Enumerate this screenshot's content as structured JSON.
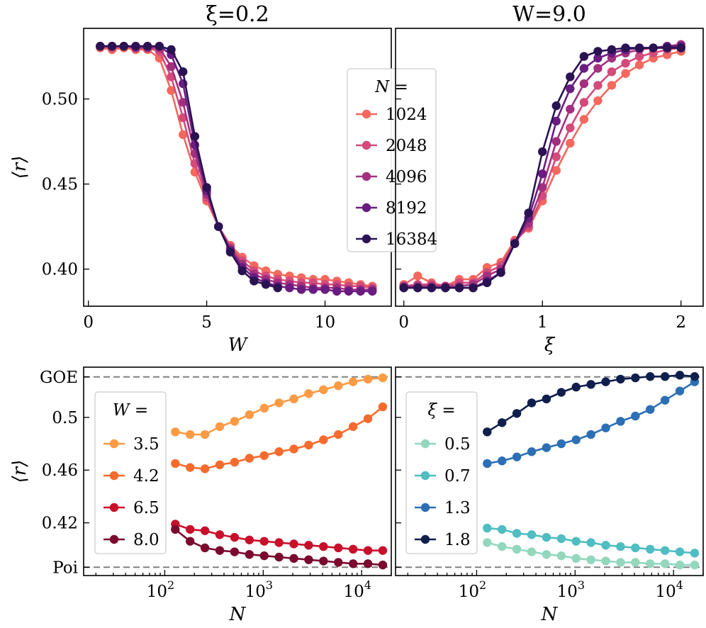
{
  "chart_data": [
    {
      "id": "top-left",
      "type": "line",
      "title": "ξ=0.2",
      "xlabel": "W",
      "ylabel": "⟨r⟩",
      "xlim": [
        -0.2,
        12.8
      ],
      "ylim": [
        0.3782,
        0.5415
      ],
      "xticks": [
        0,
        5,
        10
      ],
      "xtick_labels": [
        "0",
        "5",
        "10"
      ],
      "yticks": [
        0.4,
        0.45,
        0.5
      ],
      "ytick_labels": [
        "0.40",
        "0.45",
        "0.50"
      ],
      "legend": {
        "title": "N =",
        "placement": "right-center"
      },
      "series": [
        {
          "name": "1024",
          "color": "#f4685e",
          "x": [
            0.5,
            1,
            1.5,
            2,
            2.5,
            3,
            3.5,
            4,
            4.5,
            5,
            5.5,
            6,
            6.5,
            7,
            7.5,
            8,
            8.5,
            9,
            9.5,
            10,
            10.5,
            11,
            11.5,
            12
          ],
          "y": [
            0.53,
            0.529,
            0.53,
            0.529,
            0.529,
            0.524,
            0.505,
            0.479,
            0.457,
            0.44,
            0.425,
            0.414,
            0.407,
            0.402,
            0.399,
            0.397,
            0.396,
            0.395,
            0.394,
            0.394,
            0.393,
            0.392,
            0.391,
            0.39
          ]
        },
        {
          "name": "2048",
          "color": "#d44a7a",
          "x": [
            0.5,
            1,
            1.5,
            2,
            2.5,
            3,
            3.5,
            4,
            4.5,
            5,
            5.5,
            6,
            6.5,
            7,
            7.5,
            8,
            8.5,
            9,
            9.5,
            10,
            10.5,
            11,
            11.5,
            12
          ],
          "y": [
            0.531,
            0.53,
            0.531,
            0.53,
            0.53,
            0.528,
            0.513,
            0.489,
            0.462,
            0.442,
            0.425,
            0.413,
            0.405,
            0.399,
            0.396,
            0.394,
            0.393,
            0.392,
            0.392,
            0.391,
            0.391,
            0.39,
            0.39,
            0.389
          ]
        },
        {
          "name": "4096",
          "color": "#a3307e",
          "x": [
            0.5,
            1,
            1.5,
            2,
            2.5,
            3,
            3.5,
            4,
            4.5,
            5,
            5.5,
            6,
            6.5,
            7,
            7.5,
            8,
            8.5,
            9,
            9.5,
            10,
            10.5,
            11,
            11.5,
            12
          ],
          "y": [
            0.531,
            0.531,
            0.531,
            0.53,
            0.53,
            0.53,
            0.519,
            0.498,
            0.468,
            0.444,
            0.425,
            0.412,
            0.403,
            0.397,
            0.394,
            0.392,
            0.391,
            0.39,
            0.389,
            0.389,
            0.389,
            0.388,
            0.388,
            0.388
          ]
        },
        {
          "name": "8192",
          "color": "#6a1c81",
          "x": [
            0.5,
            1,
            1.5,
            2,
            2.5,
            3,
            3.5,
            4,
            4.5,
            5,
            5.5,
            6,
            6.5,
            7,
            7.5,
            8,
            8.5,
            9,
            9.5,
            10,
            10.5,
            11,
            11.5,
            12
          ],
          "y": [
            0.531,
            0.531,
            0.531,
            0.531,
            0.531,
            0.531,
            0.526,
            0.509,
            0.473,
            0.446,
            0.425,
            0.411,
            0.401,
            0.395,
            0.392,
            0.39,
            0.389,
            0.388,
            0.388,
            0.388,
            0.387,
            0.387,
            0.387,
            0.387
          ]
        },
        {
          "name": "16384",
          "color": "#2a1352",
          "x": [
            0.5,
            1,
            1.5,
            2,
            2.5,
            3,
            3.5,
            4,
            4.5,
            5,
            5.5,
            6,
            6.5,
            7,
            7.5,
            8
          ],
          "y": [
            0.531,
            0.531,
            0.531,
            0.531,
            0.531,
            0.531,
            0.529,
            0.516,
            0.478,
            0.448,
            0.425,
            0.41,
            0.399,
            0.393,
            0.391,
            0.389
          ]
        }
      ]
    },
    {
      "id": "top-right",
      "type": "line",
      "title": "W=9.0",
      "xlabel": "ξ",
      "ylabel": "",
      "xlim": [
        -0.06,
        2.16
      ],
      "ylim": [
        0.3782,
        0.5415
      ],
      "xticks": [
        0,
        1,
        2
      ],
      "xtick_labels": [
        "0",
        "1",
        "2"
      ],
      "yticks": [
        0.4,
        0.45,
        0.5
      ],
      "ytick_labels": [
        "",
        "",
        ""
      ],
      "series": [
        {
          "name": "1024",
          "color": "#f4685e",
          "x": [
            0,
            0.1,
            0.2,
            0.3,
            0.4,
            0.5,
            0.6,
            0.7,
            0.8,
            0.9,
            1.0,
            1.1,
            1.2,
            1.3,
            1.4,
            1.5,
            1.6,
            1.7,
            1.8,
            1.9,
            2.0
          ],
          "y": [
            0.391,
            0.396,
            0.392,
            0.39,
            0.394,
            0.394,
            0.401,
            0.404,
            0.417,
            0.424,
            0.44,
            0.458,
            0.474,
            0.488,
            0.499,
            0.508,
            0.515,
            0.52,
            0.524,
            0.526,
            0.528
          ]
        },
        {
          "name": "2048",
          "color": "#d44a7a",
          "x": [
            0,
            0.1,
            0.2,
            0.3,
            0.4,
            0.5,
            0.6,
            0.7,
            0.8,
            0.9,
            1.0,
            1.1,
            1.2,
            1.3,
            1.4,
            1.5,
            1.6,
            1.7,
            1.8,
            1.9,
            2.0
          ],
          "y": [
            0.39,
            0.391,
            0.391,
            0.39,
            0.392,
            0.392,
            0.398,
            0.402,
            0.416,
            0.425,
            0.443,
            0.466,
            0.483,
            0.498,
            0.508,
            0.516,
            0.521,
            0.525,
            0.527,
            0.529,
            0.53
          ]
        },
        {
          "name": "4096",
          "color": "#a3307e",
          "x": [
            0,
            0.1,
            0.2,
            0.3,
            0.4,
            0.5,
            0.6,
            0.7,
            0.8,
            0.9,
            1.0,
            1.1,
            1.2,
            1.3,
            1.4,
            1.5,
            1.6,
            1.7,
            1.8,
            1.9,
            2.0
          ],
          "y": [
            0.39,
            0.39,
            0.39,
            0.39,
            0.39,
            0.391,
            0.396,
            0.4,
            0.415,
            0.427,
            0.448,
            0.475,
            0.494,
            0.509,
            0.518,
            0.524,
            0.527,
            0.529,
            0.53,
            0.531,
            0.532
          ]
        },
        {
          "name": "8192",
          "color": "#6a1c81",
          "x": [
            0,
            0.1,
            0.2,
            0.3,
            0.4,
            0.5,
            0.6,
            0.7,
            0.8,
            0.9,
            1.0,
            1.1,
            1.2,
            1.3,
            1.4,
            1.5,
            1.6,
            1.7,
            1.8,
            1.9,
            2.0
          ],
          "y": [
            0.389,
            0.389,
            0.389,
            0.389,
            0.389,
            0.389,
            0.393,
            0.398,
            0.415,
            0.43,
            0.456,
            0.487,
            0.506,
            0.518,
            0.524,
            0.527,
            0.529,
            0.53,
            0.53,
            0.531,
            0.531
          ]
        },
        {
          "name": "16384",
          "color": "#2a1352",
          "x": [
            0,
            0.1,
            0.2,
            0.3,
            0.4,
            0.5,
            0.6,
            0.7,
            0.8,
            0.9,
            1.0,
            1.1,
            1.2,
            1.3,
            1.4,
            1.5,
            1.6,
            1.7,
            1.8,
            1.9,
            2.0
          ],
          "y": [
            0.389,
            0.389,
            0.389,
            0.389,
            0.389,
            0.389,
            0.392,
            0.398,
            0.415,
            0.433,
            0.469,
            0.496,
            0.513,
            0.525,
            0.528,
            0.529,
            0.53,
            0.53,
            0.53,
            0.53,
            0.53
          ]
        }
      ]
    },
    {
      "id": "bottom-left",
      "type": "line",
      "title": "",
      "xlabel": "N",
      "ylabel": "⟨r⟩",
      "xscale": "log",
      "xlim": [
        15,
        20000
      ],
      "ylim": [
        0.38,
        0.5381
      ],
      "xticks": [
        100,
        1000,
        10000
      ],
      "xtick_labels": [
        "10",
        "10",
        "10"
      ],
      "xtick_exponents": [
        "2",
        "3",
        "4"
      ],
      "yticks": [
        0.3863,
        0.42,
        0.46,
        0.5,
        0.5307
      ],
      "ytick_labels": [
        "Poi",
        "0.42",
        "0.46",
        "0.5",
        "GOE"
      ],
      "reference_lines": [
        {
          "name": "GOE",
          "y": 0.5307
        },
        {
          "name": "Poi",
          "y": 0.3863
        }
      ],
      "legend": {
        "title": "W =",
        "placement": "left-center"
      },
      "series": [
        {
          "name": "3.5",
          "color": "#fd9a44",
          "x": [
            128,
            181,
            256,
            362,
            512,
            724,
            1024,
            1448,
            2048,
            2896,
            4096,
            5793,
            8192,
            11585,
            16384
          ],
          "y": [
            0.489,
            0.487,
            0.487,
            0.493,
            0.497,
            0.502,
            0.507,
            0.511,
            0.514,
            0.518,
            0.521,
            0.524,
            0.527,
            0.529,
            0.53
          ]
        },
        {
          "name": "4.2",
          "color": "#f56b2e",
          "x": [
            128,
            181,
            256,
            362,
            512,
            724,
            1024,
            1448,
            2048,
            2896,
            4096,
            5793,
            8192,
            11585,
            16384
          ],
          "y": [
            0.465,
            0.462,
            0.461,
            0.464,
            0.466,
            0.469,
            0.471,
            0.474,
            0.476,
            0.479,
            0.483,
            0.487,
            0.493,
            0.499,
            0.508
          ]
        },
        {
          "name": "6.5",
          "color": "#c8102b",
          "x": [
            128,
            181,
            256,
            362,
            512,
            724,
            1024,
            1448,
            2048,
            2896,
            4096,
            5793,
            8192,
            11585,
            16384
          ],
          "y": [
            0.419,
            0.415,
            0.414,
            0.411,
            0.409,
            0.407,
            0.406,
            0.405,
            0.404,
            0.403,
            0.402,
            0.401,
            0.4,
            0.399,
            0.399
          ]
        },
        {
          "name": "8.0",
          "color": "#7a0a2e",
          "x": [
            128,
            181,
            256,
            362,
            512,
            724,
            1024,
            1448,
            2048,
            2896,
            4096,
            5793,
            8192,
            11585,
            16384
          ],
          "y": [
            0.415,
            0.406,
            0.401,
            0.399,
            0.398,
            0.396,
            0.395,
            0.394,
            0.393,
            0.392,
            0.391,
            0.39,
            0.389,
            0.389,
            0.388
          ]
        }
      ]
    },
    {
      "id": "bottom-right",
      "type": "line",
      "title": "",
      "xlabel": "N",
      "ylabel": "",
      "xscale": "log",
      "xlim": [
        15,
        20000
      ],
      "ylim": [
        0.38,
        0.5381
      ],
      "xticks": [
        100,
        1000,
        10000
      ],
      "xtick_labels": [
        "10",
        "10",
        "10"
      ],
      "xtick_exponents": [
        "2",
        "3",
        "4"
      ],
      "yticks": [
        0.3863,
        0.42,
        0.46,
        0.5,
        0.5307
      ],
      "ytick_labels": [
        "",
        "",
        "",
        "",
        ""
      ],
      "reference_lines": [
        {
          "name": "GOE",
          "y": 0.5307
        },
        {
          "name": "Poi",
          "y": 0.3863
        }
      ],
      "legend": {
        "title": "ξ =",
        "placement": "left-center"
      },
      "series": [
        {
          "name": "0.5",
          "color": "#93d7bd",
          "x": [
            128,
            181,
            256,
            362,
            512,
            724,
            1024,
            1448,
            2048,
            2896,
            4096,
            5793,
            8192,
            11585,
            16384
          ],
          "y": [
            0.405,
            0.402,
            0.4,
            0.398,
            0.396,
            0.395,
            0.393,
            0.392,
            0.391,
            0.39,
            0.39,
            0.389,
            0.389,
            0.388,
            0.388
          ]
        },
        {
          "name": "0.7",
          "color": "#4fbdc1",
          "x": [
            128,
            181,
            256,
            362,
            512,
            724,
            1024,
            1448,
            2048,
            2896,
            4096,
            5793,
            8192,
            11585,
            16384
          ],
          "y": [
            0.416,
            0.415,
            0.412,
            0.411,
            0.409,
            0.408,
            0.406,
            0.405,
            0.403,
            0.402,
            0.401,
            0.4,
            0.399,
            0.398,
            0.397
          ]
        },
        {
          "name": "1.3",
          "color": "#2c6fb4",
          "x": [
            128,
            181,
            256,
            362,
            512,
            724,
            1024,
            1448,
            2048,
            2896,
            4096,
            5793,
            8192,
            11585,
            16384
          ],
          "y": [
            0.465,
            0.467,
            0.47,
            0.474,
            0.477,
            0.48,
            0.483,
            0.487,
            0.492,
            0.497,
            0.501,
            0.506,
            0.513,
            0.52,
            0.527
          ]
        },
        {
          "name": "1.8",
          "color": "#0f1f4d",
          "x": [
            128,
            181,
            256,
            362,
            512,
            724,
            1024,
            1448,
            2048,
            2896,
            4096,
            5793,
            8192,
            11585,
            16384
          ],
          "y": [
            0.489,
            0.496,
            0.503,
            0.511,
            0.514,
            0.519,
            0.523,
            0.525,
            0.527,
            0.529,
            0.53,
            0.531,
            0.531,
            0.532,
            0.531
          ]
        }
      ]
    }
  ]
}
